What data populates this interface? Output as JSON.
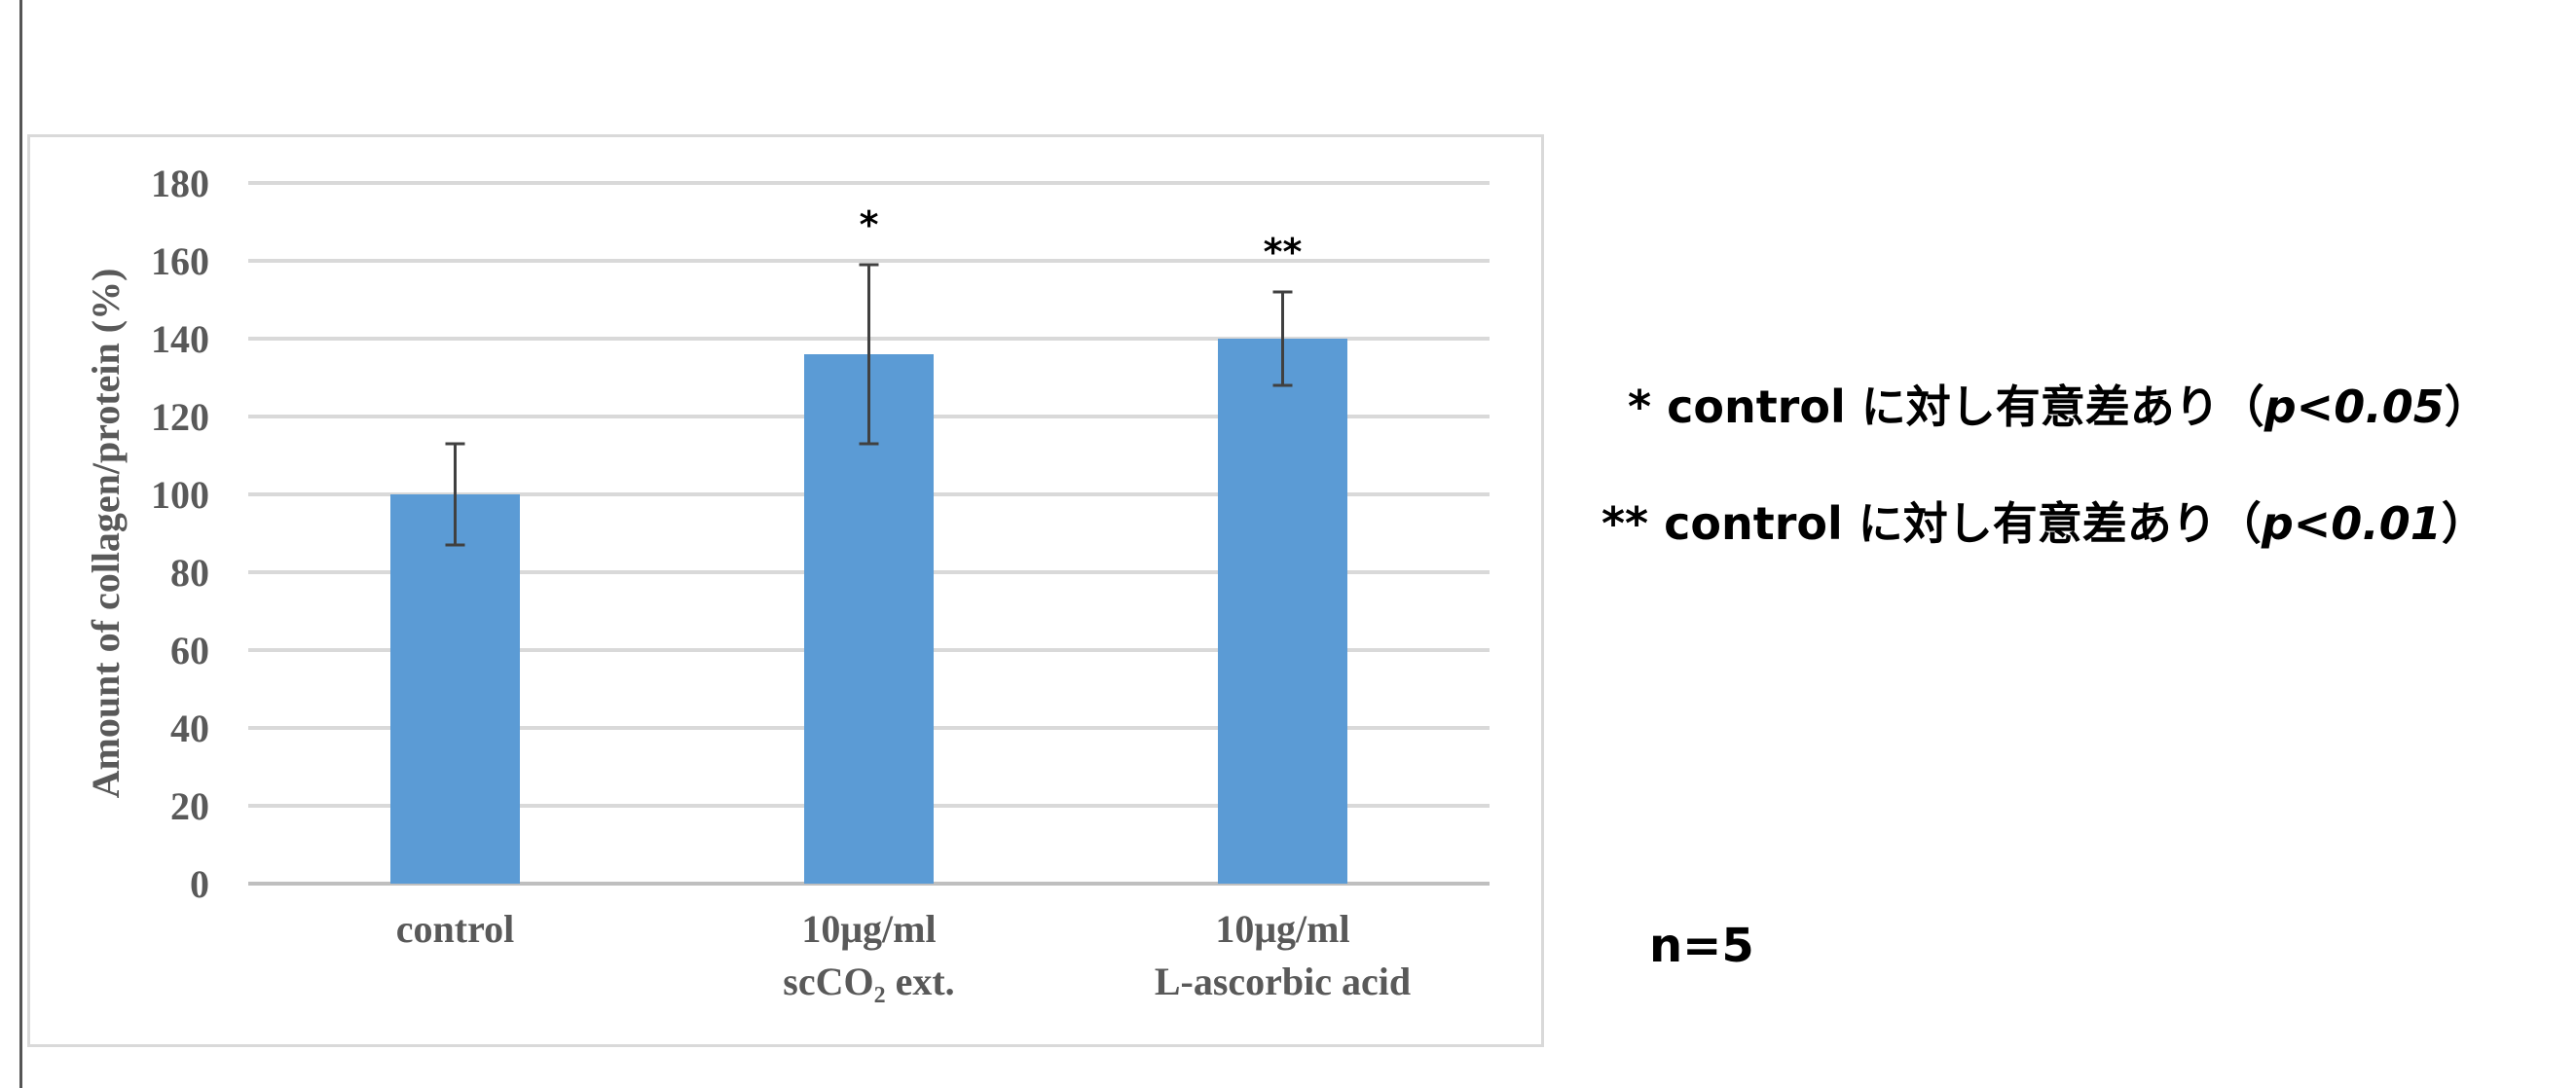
{
  "chart_data": {
    "type": "bar",
    "ylabel": "Amount of collagen/protein (%)",
    "ylim": [
      0,
      180
    ],
    "yticks": [
      0,
      20,
      40,
      60,
      80,
      100,
      120,
      140,
      160,
      180
    ],
    "grid": true,
    "categories": [
      [
        "control"
      ],
      [
        "10μg/ml",
        "scCO₂ ext."
      ],
      [
        "10μg/ml",
        "L-ascorbic acid"
      ]
    ],
    "values": [
      100,
      136,
      140
    ],
    "errors": [
      13,
      23,
      12
    ],
    "significance": [
      "",
      "*",
      "**"
    ],
    "bar_color": "#5b9bd5"
  },
  "notes": {
    "single_star_prefix": "* control に対し有意差あり（",
    "single_star_p": "p<0.05",
    "single_star_suffix": "）",
    "double_star_prefix": "** control に対し有意差あり（",
    "double_star_p": "p<0.01",
    "double_star_suffix": "）",
    "sample_size": "n=5"
  }
}
